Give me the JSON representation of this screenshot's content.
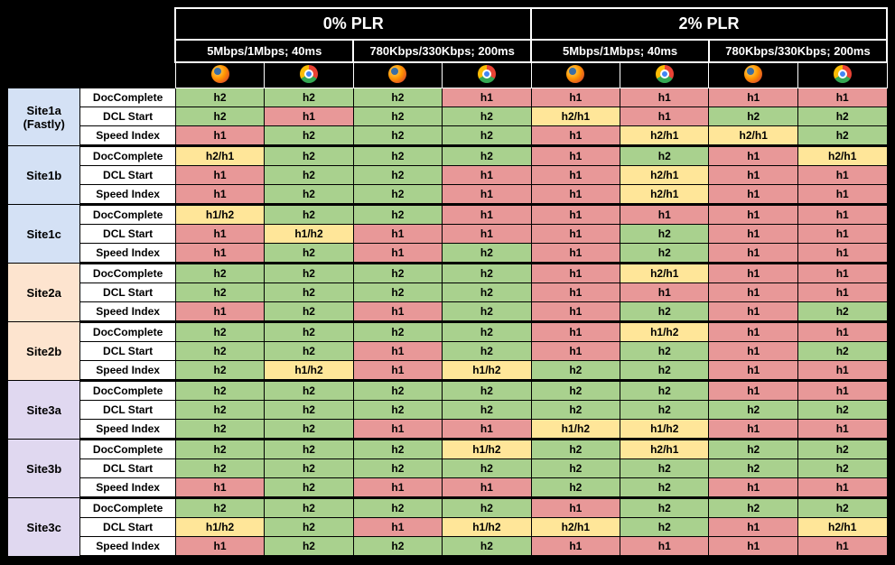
{
  "colors": {
    "green": "#a9d18e",
    "red": "#e89898",
    "yellow": "#ffe699",
    "background": "#000000",
    "site_colors": {
      "Site1a": "#d4e1f5",
      "Site1b": "#d4e1f5",
      "Site1c": "#d4e1f5",
      "Site2a": "#fde4cf",
      "Site2b": "#fde4cf",
      "Site3a": "#e0d8f0",
      "Site3b": "#e0d8f0",
      "Site3c": "#e0d8f0"
    }
  },
  "plr_headers": [
    "0% PLR",
    "2% PLR"
  ],
  "net_headers": [
    "5Mbps/1Mbps; 40ms",
    "780Kbps/330Kbps; 200ms",
    "5Mbps/1Mbps; 40ms",
    "780Kbps/330Kbps; 200ms"
  ],
  "browsers": [
    "firefox",
    "chrome",
    "firefox",
    "chrome",
    "firefox",
    "chrome",
    "firefox",
    "chrome"
  ],
  "metrics": [
    "DocComplete",
    "DCL Start",
    "Speed Index"
  ],
  "sites": [
    {
      "id": "Site1a",
      "label": "Site1a\n(Fastly)",
      "rows": [
        [
          [
            "h2",
            "g"
          ],
          [
            "h2",
            "g"
          ],
          [
            "h2",
            "g"
          ],
          [
            "h1",
            "r"
          ],
          [
            "h1",
            "r"
          ],
          [
            "h1",
            "r"
          ],
          [
            "h1",
            "r"
          ],
          [
            "h1",
            "r"
          ]
        ],
        [
          [
            "h2",
            "g"
          ],
          [
            "h1",
            "r"
          ],
          [
            "h2",
            "g"
          ],
          [
            "h2",
            "g"
          ],
          [
            "h2/h1",
            "y"
          ],
          [
            "h1",
            "r"
          ],
          [
            "h2",
            "g"
          ],
          [
            "h2",
            "g"
          ]
        ],
        [
          [
            "h1",
            "r"
          ],
          [
            "h2",
            "g"
          ],
          [
            "h2",
            "g"
          ],
          [
            "h2",
            "g"
          ],
          [
            "h1",
            "r"
          ],
          [
            "h2/h1",
            "y"
          ],
          [
            "h2/h1",
            "y"
          ],
          [
            "h2",
            "g"
          ]
        ]
      ]
    },
    {
      "id": "Site1b",
      "label": "Site1b",
      "rows": [
        [
          [
            "h2/h1",
            "y"
          ],
          [
            "h2",
            "g"
          ],
          [
            "h2",
            "g"
          ],
          [
            "h2",
            "g"
          ],
          [
            "h1",
            "r"
          ],
          [
            "h2",
            "g"
          ],
          [
            "h1",
            "r"
          ],
          [
            "h2/h1",
            "y"
          ]
        ],
        [
          [
            "h1",
            "r"
          ],
          [
            "h2",
            "g"
          ],
          [
            "h2",
            "g"
          ],
          [
            "h1",
            "r"
          ],
          [
            "h1",
            "r"
          ],
          [
            "h2/h1",
            "y"
          ],
          [
            "h1",
            "r"
          ],
          [
            "h1",
            "r"
          ]
        ],
        [
          [
            "h1",
            "r"
          ],
          [
            "h2",
            "g"
          ],
          [
            "h2",
            "g"
          ],
          [
            "h1",
            "r"
          ],
          [
            "h1",
            "r"
          ],
          [
            "h2/h1",
            "y"
          ],
          [
            "h1",
            "r"
          ],
          [
            "h1",
            "r"
          ]
        ]
      ]
    },
    {
      "id": "Site1c",
      "label": "Site1c",
      "rows": [
        [
          [
            "h1/h2",
            "y"
          ],
          [
            "h2",
            "g"
          ],
          [
            "h2",
            "g"
          ],
          [
            "h1",
            "r"
          ],
          [
            "h1",
            "r"
          ],
          [
            "h1",
            "r"
          ],
          [
            "h1",
            "r"
          ],
          [
            "h1",
            "r"
          ]
        ],
        [
          [
            "h1",
            "r"
          ],
          [
            "h1/h2",
            "y"
          ],
          [
            "h1",
            "r"
          ],
          [
            "h1",
            "r"
          ],
          [
            "h1",
            "r"
          ],
          [
            "h2",
            "g"
          ],
          [
            "h1",
            "r"
          ],
          [
            "h1",
            "r"
          ]
        ],
        [
          [
            "h1",
            "r"
          ],
          [
            "h2",
            "g"
          ],
          [
            "h1",
            "r"
          ],
          [
            "h2",
            "g"
          ],
          [
            "h1",
            "r"
          ],
          [
            "h2",
            "g"
          ],
          [
            "h1",
            "r"
          ],
          [
            "h1",
            "r"
          ]
        ]
      ]
    },
    {
      "id": "Site2a",
      "label": "Site2a",
      "rows": [
        [
          [
            "h2",
            "g"
          ],
          [
            "h2",
            "g"
          ],
          [
            "h2",
            "g"
          ],
          [
            "h2",
            "g"
          ],
          [
            "h1",
            "r"
          ],
          [
            "h2/h1",
            "y"
          ],
          [
            "h1",
            "r"
          ],
          [
            "h1",
            "r"
          ]
        ],
        [
          [
            "h2",
            "g"
          ],
          [
            "h2",
            "g"
          ],
          [
            "h2",
            "g"
          ],
          [
            "h2",
            "g"
          ],
          [
            "h1",
            "r"
          ],
          [
            "h1",
            "r"
          ],
          [
            "h1",
            "r"
          ],
          [
            "h1",
            "r"
          ]
        ],
        [
          [
            "h1",
            "r"
          ],
          [
            "h2",
            "g"
          ],
          [
            "h1",
            "r"
          ],
          [
            "h2",
            "g"
          ],
          [
            "h1",
            "r"
          ],
          [
            "h2",
            "g"
          ],
          [
            "h1",
            "r"
          ],
          [
            "h2",
            "g"
          ]
        ]
      ]
    },
    {
      "id": "Site2b",
      "label": "Site2b",
      "rows": [
        [
          [
            "h2",
            "g"
          ],
          [
            "h2",
            "g"
          ],
          [
            "h2",
            "g"
          ],
          [
            "h2",
            "g"
          ],
          [
            "h1",
            "r"
          ],
          [
            "h1/h2",
            "y"
          ],
          [
            "h1",
            "r"
          ],
          [
            "h1",
            "r"
          ]
        ],
        [
          [
            "h2",
            "g"
          ],
          [
            "h2",
            "g"
          ],
          [
            "h1",
            "r"
          ],
          [
            "h2",
            "g"
          ],
          [
            "h1",
            "r"
          ],
          [
            "h2",
            "g"
          ],
          [
            "h1",
            "r"
          ],
          [
            "h2",
            "g"
          ]
        ],
        [
          [
            "h2",
            "g"
          ],
          [
            "h1/h2",
            "y"
          ],
          [
            "h1",
            "r"
          ],
          [
            "h1/h2",
            "y"
          ],
          [
            "h2",
            "g"
          ],
          [
            "h2",
            "g"
          ],
          [
            "h1",
            "r"
          ],
          [
            "h1",
            "r"
          ]
        ]
      ]
    },
    {
      "id": "Site3a",
      "label": "Site3a",
      "rows": [
        [
          [
            "h2",
            "g"
          ],
          [
            "h2",
            "g"
          ],
          [
            "h2",
            "g"
          ],
          [
            "h2",
            "g"
          ],
          [
            "h2",
            "g"
          ],
          [
            "h2",
            "g"
          ],
          [
            "h1",
            "r"
          ],
          [
            "h1",
            "r"
          ]
        ],
        [
          [
            "h2",
            "g"
          ],
          [
            "h2",
            "g"
          ],
          [
            "h2",
            "g"
          ],
          [
            "h2",
            "g"
          ],
          [
            "h2",
            "g"
          ],
          [
            "h2",
            "g"
          ],
          [
            "h2",
            "g"
          ],
          [
            "h2",
            "g"
          ]
        ],
        [
          [
            "h2",
            "g"
          ],
          [
            "h2",
            "g"
          ],
          [
            "h1",
            "r"
          ],
          [
            "h1",
            "r"
          ],
          [
            "h1/h2",
            "y"
          ],
          [
            "h1/h2",
            "y"
          ],
          [
            "h1",
            "r"
          ],
          [
            "h1",
            "r"
          ]
        ]
      ]
    },
    {
      "id": "Site3b",
      "label": "Site3b",
      "rows": [
        [
          [
            "h2",
            "g"
          ],
          [
            "h2",
            "g"
          ],
          [
            "h2",
            "g"
          ],
          [
            "h1/h2",
            "y"
          ],
          [
            "h2",
            "g"
          ],
          [
            "h2/h1",
            "y"
          ],
          [
            "h2",
            "g"
          ],
          [
            "h2",
            "g"
          ]
        ],
        [
          [
            "h2",
            "g"
          ],
          [
            "h2",
            "g"
          ],
          [
            "h2",
            "g"
          ],
          [
            "h2",
            "g"
          ],
          [
            "h2",
            "g"
          ],
          [
            "h2",
            "g"
          ],
          [
            "h2",
            "g"
          ],
          [
            "h2",
            "g"
          ]
        ],
        [
          [
            "h1",
            "r"
          ],
          [
            "h2",
            "g"
          ],
          [
            "h1",
            "r"
          ],
          [
            "h1",
            "r"
          ],
          [
            "h2",
            "g"
          ],
          [
            "h2",
            "g"
          ],
          [
            "h1",
            "r"
          ],
          [
            "h1",
            "r"
          ]
        ]
      ]
    },
    {
      "id": "Site3c",
      "label": "Site3c",
      "rows": [
        [
          [
            "h2",
            "g"
          ],
          [
            "h2",
            "g"
          ],
          [
            "h2",
            "g"
          ],
          [
            "h2",
            "g"
          ],
          [
            "h1",
            "r"
          ],
          [
            "h2",
            "g"
          ],
          [
            "h2",
            "g"
          ],
          [
            "h2",
            "g"
          ]
        ],
        [
          [
            "h1/h2",
            "y"
          ],
          [
            "h2",
            "g"
          ],
          [
            "h1",
            "r"
          ],
          [
            "h1/h2",
            "y"
          ],
          [
            "h2/h1",
            "y"
          ],
          [
            "h2",
            "g"
          ],
          [
            "h1",
            "r"
          ],
          [
            "h2/h1",
            "y"
          ]
        ],
        [
          [
            "h1",
            "r"
          ],
          [
            "h2",
            "g"
          ],
          [
            "h2",
            "g"
          ],
          [
            "h2",
            "g"
          ],
          [
            "h1",
            "r"
          ],
          [
            "h1",
            "r"
          ],
          [
            "h1",
            "r"
          ],
          [
            "h1",
            "r"
          ]
        ]
      ]
    }
  ]
}
